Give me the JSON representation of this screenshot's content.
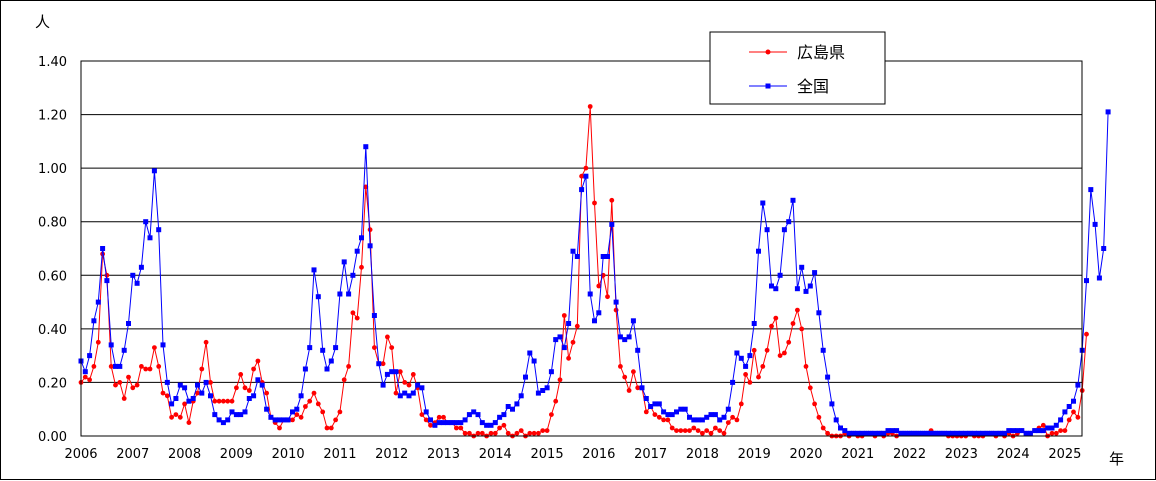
{
  "chart_data": {
    "type": "line",
    "ylabel": "人",
    "xlabel": "年",
    "ylim": [
      0,
      1.4
    ],
    "yticks": [
      "0.00",
      "0.20",
      "0.40",
      "0.60",
      "0.80",
      "1.00",
      "1.20",
      "1.40"
    ],
    "xlim": [
      2006,
      2025.33
    ],
    "xticks": [
      "2006",
      "2007",
      "2008",
      "2009",
      "2010",
      "2011",
      "2012",
      "2013",
      "2014",
      "2015",
      "2016",
      "2017",
      "2018",
      "2019",
      "2020",
      "2021",
      "2022",
      "2023",
      "2024",
      "2025"
    ],
    "grid": "horizontal",
    "legend": "top-right",
    "series": [
      {
        "name": "広島県",
        "color": "#ff0000",
        "marker": "circle",
        "values": [
          0.2,
          0.22,
          0.21,
          0.26,
          0.35,
          0.68,
          0.6,
          0.26,
          0.19,
          0.2,
          0.14,
          0.22,
          0.18,
          0.19,
          0.26,
          0.25,
          0.25,
          0.33,
          0.26,
          0.16,
          0.15,
          0.07,
          0.08,
          0.07,
          0.12,
          0.05,
          0.13,
          0.16,
          0.25,
          0.35,
          0.2,
          0.13,
          0.13,
          0.13,
          0.13,
          0.13,
          0.18,
          0.23,
          0.18,
          0.17,
          0.25,
          0.28,
          0.2,
          0.16,
          0.07,
          0.05,
          0.03,
          0.06,
          0.06,
          0.06,
          0.08,
          0.07,
          0.11,
          0.13,
          0.16,
          0.12,
          0.09,
          0.03,
          0.03,
          0.06,
          0.09,
          0.21,
          0.26,
          0.46,
          0.44,
          0.63,
          0.93,
          0.77,
          0.33,
          0.27,
          0.27,
          0.37,
          0.33,
          0.16,
          0.24,
          0.2,
          0.19,
          0.23,
          0.18,
          0.08,
          0.06,
          0.04,
          0.05,
          0.07,
          0.07,
          0.05,
          0.05,
          0.03,
          0.03,
          0.01,
          0.01,
          0.0,
          0.01,
          0.01,
          0.0,
          0.01,
          0.01,
          0.03,
          0.04,
          0.01,
          0.0,
          0.01,
          0.02,
          0.0,
          0.01,
          0.01,
          0.01,
          0.02,
          0.02,
          0.08,
          0.13,
          0.21,
          0.45,
          0.29,
          0.35,
          0.41,
          0.97,
          1.0,
          1.23,
          0.87,
          0.56,
          0.6,
          0.52,
          0.88,
          0.47,
          0.26,
          0.22,
          0.17,
          0.24,
          0.18,
          0.18,
          0.09,
          0.11,
          0.08,
          0.07,
          0.06,
          0.06,
          0.03,
          0.02,
          0.02,
          0.02,
          0.02,
          0.03,
          0.02,
          0.01,
          0.02,
          0.01,
          0.03,
          0.02,
          0.01,
          0.05,
          0.07,
          0.06,
          0.12,
          0.23,
          0.2,
          0.32,
          0.22,
          0.26,
          0.32,
          0.41,
          0.44,
          0.3,
          0.31,
          0.35,
          0.42,
          0.47,
          0.4,
          0.26,
          0.18,
          0.12,
          0.07,
          0.03,
          0.01,
          0.0,
          0.0,
          0.0,
          0.01,
          0.0,
          0.01,
          0.0,
          0.0,
          0.01,
          0.01,
          0.0,
          0.01,
          0.0,
          0.01,
          0.01,
          0.0,
          0.01,
          0.01,
          0.01,
          0.01,
          0.01,
          0.01,
          0.01,
          0.02,
          0.01,
          0.01,
          0.01,
          0.0,
          0.0,
          0.0,
          0.0,
          0.0,
          0.01,
          0.0,
          0.0,
          0.0,
          0.01,
          0.01,
          0.0,
          0.01,
          0.0,
          0.01,
          0.0,
          0.01,
          0.02,
          0.01,
          0.01,
          0.02,
          0.03,
          0.04,
          0.0,
          0.01,
          0.01,
          0.02,
          0.02,
          0.06,
          0.09,
          0.07,
          0.17,
          0.38
        ]
      },
      {
        "name": "全国",
        "color": "#0000ff",
        "marker": "square",
        "values": [
          0.28,
          0.24,
          0.3,
          0.43,
          0.5,
          0.7,
          0.58,
          0.34,
          0.26,
          0.26,
          0.32,
          0.42,
          0.6,
          0.57,
          0.63,
          0.8,
          0.74,
          0.99,
          0.77,
          0.34,
          0.2,
          0.12,
          0.14,
          0.19,
          0.18,
          0.13,
          0.14,
          0.19,
          0.16,
          0.2,
          0.15,
          0.08,
          0.06,
          0.05,
          0.06,
          0.09,
          0.08,
          0.08,
          0.09,
          0.14,
          0.15,
          0.21,
          0.19,
          0.1,
          0.07,
          0.06,
          0.06,
          0.06,
          0.06,
          0.09,
          0.1,
          0.15,
          0.25,
          0.33,
          0.62,
          0.52,
          0.32,
          0.25,
          0.28,
          0.33,
          0.53,
          0.65,
          0.53,
          0.6,
          0.69,
          0.74,
          1.08,
          0.71,
          0.45,
          0.27,
          0.19,
          0.23,
          0.24,
          0.24,
          0.15,
          0.16,
          0.15,
          0.16,
          0.19,
          0.18,
          0.09,
          0.06,
          0.04,
          0.05,
          0.05,
          0.05,
          0.05,
          0.05,
          0.05,
          0.06,
          0.08,
          0.09,
          0.08,
          0.05,
          0.04,
          0.04,
          0.05,
          0.07,
          0.08,
          0.11,
          0.1,
          0.12,
          0.15,
          0.22,
          0.31,
          0.28,
          0.16,
          0.17,
          0.18,
          0.24,
          0.36,
          0.37,
          0.33,
          0.42,
          0.69,
          0.67,
          0.92,
          0.97,
          0.53,
          0.43,
          0.46,
          0.67,
          0.67,
          0.79,
          0.5,
          0.37,
          0.36,
          0.37,
          0.43,
          0.32,
          0.18,
          0.14,
          0.11,
          0.12,
          0.12,
          0.09,
          0.08,
          0.08,
          0.09,
          0.1,
          0.1,
          0.07,
          0.06,
          0.06,
          0.06,
          0.07,
          0.08,
          0.08,
          0.06,
          0.07,
          0.1,
          0.2,
          0.31,
          0.29,
          0.26,
          0.3,
          0.42,
          0.69,
          0.87,
          0.77,
          0.56,
          0.55,
          0.6,
          0.77,
          0.8,
          0.88,
          0.55,
          0.63,
          0.54,
          0.56,
          0.61,
          0.46,
          0.32,
          0.22,
          0.12,
          0.06,
          0.03,
          0.02,
          0.01,
          0.01,
          0.01,
          0.01,
          0.01,
          0.01,
          0.01,
          0.01,
          0.01,
          0.02,
          0.02,
          0.02,
          0.01,
          0.01,
          0.01,
          0.01,
          0.01,
          0.01,
          0.01,
          0.01,
          0.01,
          0.01,
          0.01,
          0.01,
          0.01,
          0.01,
          0.01,
          0.01,
          0.01,
          0.01,
          0.01,
          0.01,
          0.01,
          0.01,
          0.01,
          0.01,
          0.01,
          0.02,
          0.02,
          0.02,
          0.02,
          0.01,
          0.01,
          0.02,
          0.02,
          0.02,
          0.03,
          0.03,
          0.04,
          0.06,
          0.09,
          0.11,
          0.13,
          0.19,
          0.32,
          0.58,
          0.92,
          0.79,
          0.59,
          0.7,
          1.21
        ]
      }
    ]
  }
}
